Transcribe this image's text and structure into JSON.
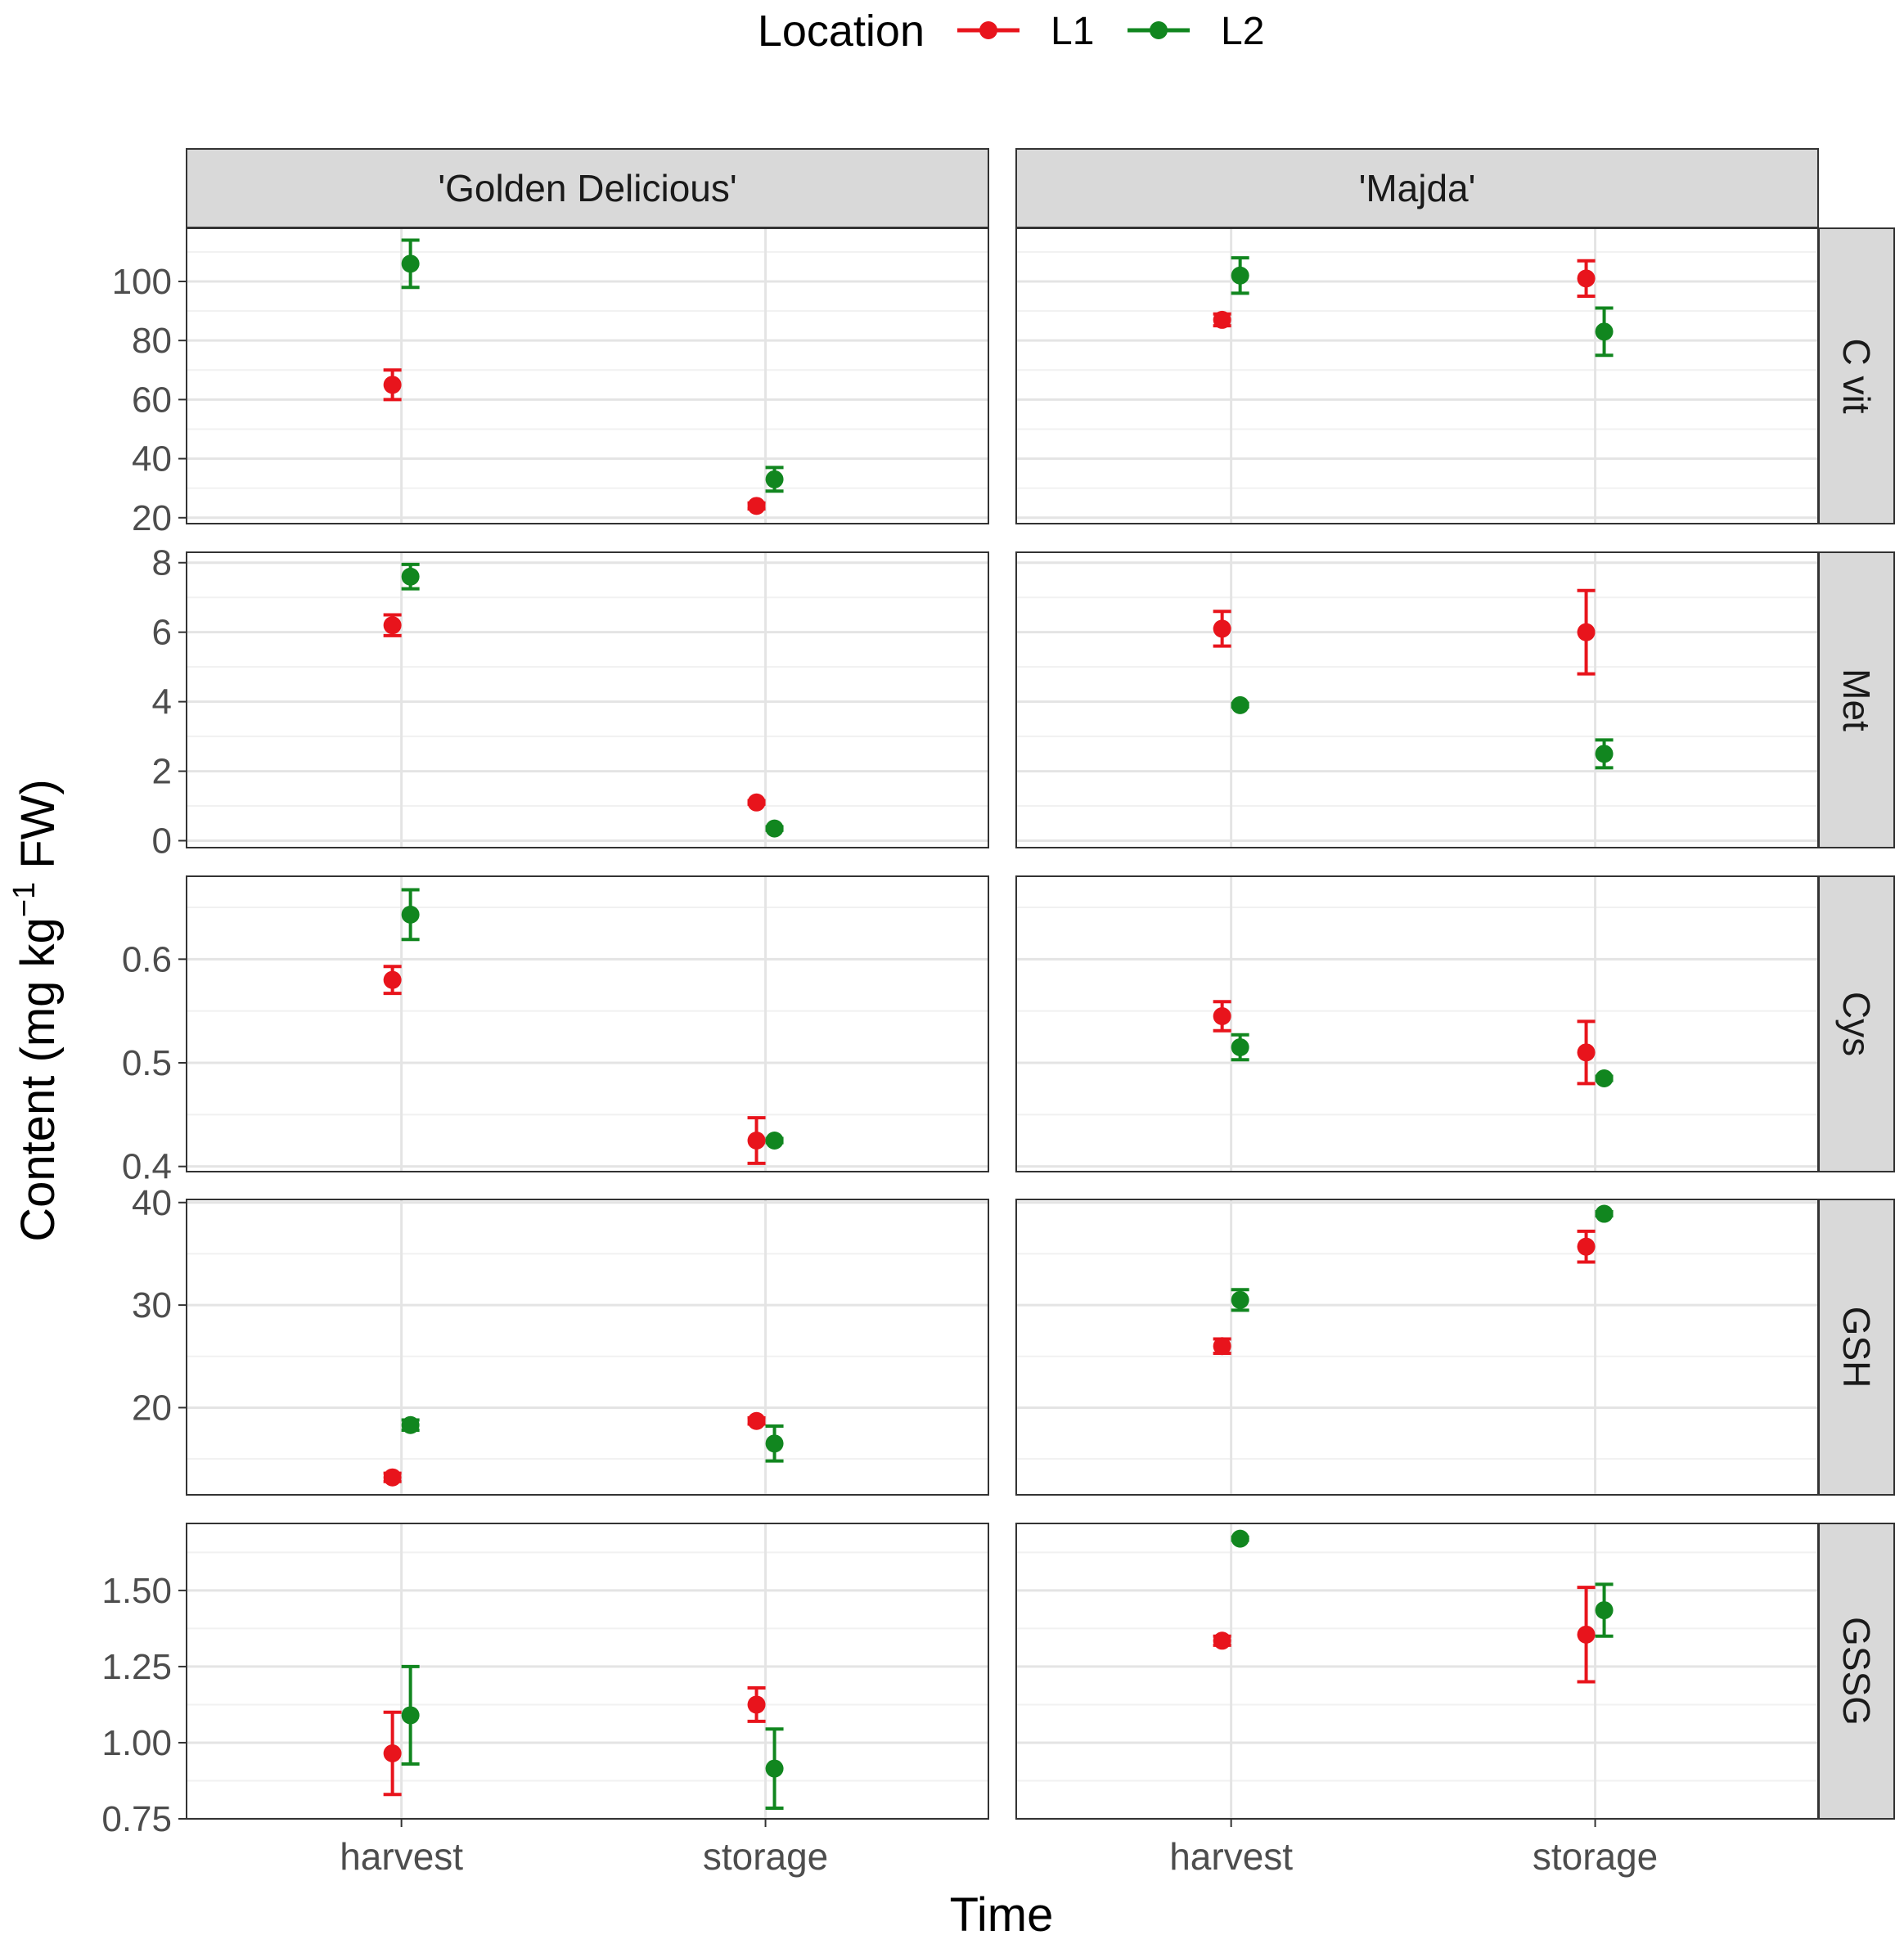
{
  "chart_data": {
    "type": "scatter",
    "subtype": "point-with-error-bars, faceted grid",
    "xlabel": "Time",
    "ylabel_parts": {
      "pre": "Content (mg kg",
      "sup": "−1",
      "post": " FW)"
    },
    "legend": {
      "title": "Location",
      "placement": "top",
      "entries": [
        {
          "name": "L1",
          "color": "#e8141c"
        },
        {
          "name": "L2",
          "color": "#11861f"
        }
      ]
    },
    "categories": [
      "harvest",
      "storage"
    ],
    "columns": [
      "'Golden Delicious'",
      "'Majda'"
    ],
    "rows": [
      {
        "label": "C vit",
        "ylim": [
          18,
          118
        ],
        "ticks": [
          20,
          40,
          60,
          80,
          100
        ],
        "tick_labels": [
          "20",
          "40",
          "60",
          "80",
          "100"
        ],
        "data": {
          "'Golden Delicious'": {
            "L1": {
              "values": [
                65,
                24
              ],
              "errors": [
                5,
                1
              ]
            },
            "L2": {
              "values": [
                106,
                33
              ],
              "errors": [
                8,
                4
              ]
            }
          },
          "'Majda'": {
            "L1": {
              "values": [
                87,
                101
              ],
              "errors": [
                2,
                6
              ]
            },
            "L2": {
              "values": [
                102,
                83
              ],
              "errors": [
                6,
                8
              ]
            }
          }
        }
      },
      {
        "label": "Met",
        "ylim": [
          -0.2,
          8.3
        ],
        "ticks": [
          0,
          2,
          4,
          6,
          8
        ],
        "tick_labels": [
          "0",
          "2",
          "4",
          "6",
          "8"
        ],
        "data": {
          "'Golden Delicious'": {
            "L1": {
              "values": [
                6.2,
                1.1
              ],
              "errors": [
                0.3,
                0.05
              ]
            },
            "L2": {
              "values": [
                7.6,
                0.35
              ],
              "errors": [
                0.35,
                0.05
              ]
            }
          },
          "'Majda'": {
            "L1": {
              "values": [
                6.1,
                6.0
              ],
              "errors": [
                0.5,
                1.2
              ]
            },
            "L2": {
              "values": [
                3.9,
                2.5
              ],
              "errors": [
                0.05,
                0.4
              ]
            }
          }
        }
      },
      {
        "label": "Cys",
        "ylim": [
          0.395,
          0.68
        ],
        "ticks": [
          0.4,
          0.5,
          0.6
        ],
        "tick_labels": [
          "0.4",
          "0.5",
          "0.6"
        ],
        "data": {
          "'Golden Delicious'": {
            "L1": {
              "values": [
                0.58,
                0.425
              ],
              "errors": [
                0.013,
                0.022
              ]
            },
            "L2": {
              "values": [
                0.643,
                0.425
              ],
              "errors": [
                0.024,
                0.002
              ]
            }
          },
          "'Majda'": {
            "L1": {
              "values": [
                0.545,
                0.51
              ],
              "errors": [
                0.014,
                0.03
              ]
            },
            "L2": {
              "values": [
                0.515,
                0.485
              ],
              "errors": [
                0.012,
                0.002
              ]
            }
          }
        }
      },
      {
        "label": "GSH",
        "ylim": [
          11.5,
          40.3
        ],
        "ticks": [
          20,
          30,
          40
        ],
        "tick_labels": [
          "20",
          "30",
          "40"
        ],
        "data": {
          "'Golden Delicious'": {
            "L1": {
              "values": [
                13.2,
                18.7
              ],
              "errors": [
                0.4,
                0.3
              ]
            },
            "L2": {
              "values": [
                18.3,
                16.5
              ],
              "errors": [
                0.5,
                1.7
              ]
            }
          },
          "'Majda'": {
            "L1": {
              "values": [
                26.0,
                35.7
              ],
              "errors": [
                0.7,
                1.5
              ]
            },
            "L2": {
              "values": [
                30.5,
                38.9
              ],
              "errors": [
                1.0,
                0.2
              ]
            }
          }
        }
      },
      {
        "label": "GSSG",
        "ylim": [
          0.75,
          1.72
        ],
        "ticks": [
          0.75,
          1.0,
          1.25,
          1.5
        ],
        "tick_labels": [
          "0.75",
          "1.00",
          "1.25",
          "1.50"
        ],
        "data": {
          "'Golden Delicious'": {
            "L1": {
              "values": [
                0.965,
                1.125
              ],
              "errors": [
                0.135,
                0.055
              ]
            },
            "L2": {
              "values": [
                1.09,
                0.915
              ],
              "errors": [
                0.16,
                0.13
              ]
            }
          },
          "'Majda'": {
            "L1": {
              "values": [
                1.335,
                1.355
              ],
              "errors": [
                0.015,
                0.155
              ]
            },
            "L2": {
              "values": [
                1.67,
                1.435
              ],
              "errors": [
                0.005,
                0.085
              ]
            }
          }
        }
      }
    ]
  }
}
